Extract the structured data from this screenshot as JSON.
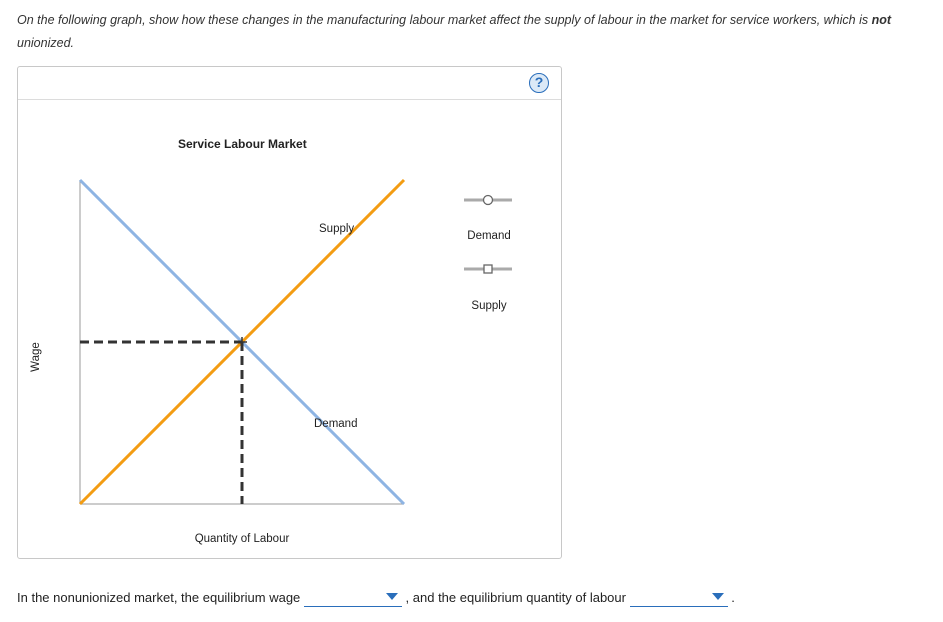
{
  "instructions": {
    "part1": "On the following graph, show how these changes in the manufacturing labour market affect the supply of labour in the market for service workers, which is ",
    "emphasis": "not",
    "part2": " unionized."
  },
  "panel": {
    "help_label": "?"
  },
  "chart_data": {
    "type": "line",
    "title": "Service Labour Market",
    "xlabel": "Quantity of Labour",
    "ylabel": "Wage",
    "grid": false,
    "xlim": [
      0,
      100
    ],
    "ylim": [
      0,
      100
    ],
    "series": [
      {
        "name": "Demand",
        "color": "#8eb4e3",
        "points": [
          [
            0,
            100
          ],
          [
            100,
            0
          ]
        ]
      },
      {
        "name": "Supply",
        "color": "#f39c12",
        "points": [
          [
            0,
            0
          ],
          [
            100,
            100
          ]
        ]
      }
    ],
    "equilibrium": {
      "x": 50,
      "y": 50,
      "guide_color": "#333333"
    },
    "legend": {
      "placement": "right",
      "items": [
        {
          "label": "Demand",
          "marker": "circle"
        },
        {
          "label": "Supply",
          "marker": "square"
        }
      ]
    }
  },
  "answer": {
    "prefix": "In the nonunionized market, the equilibrium wage",
    "wage_value": "",
    "middle": ", and the equilibrium quantity of labour",
    "quantity_value": "",
    "suffix": "."
  },
  "colors": {
    "accent": "#2a6ebb",
    "demand": "#8eb4e3",
    "supply": "#f39c12"
  }
}
